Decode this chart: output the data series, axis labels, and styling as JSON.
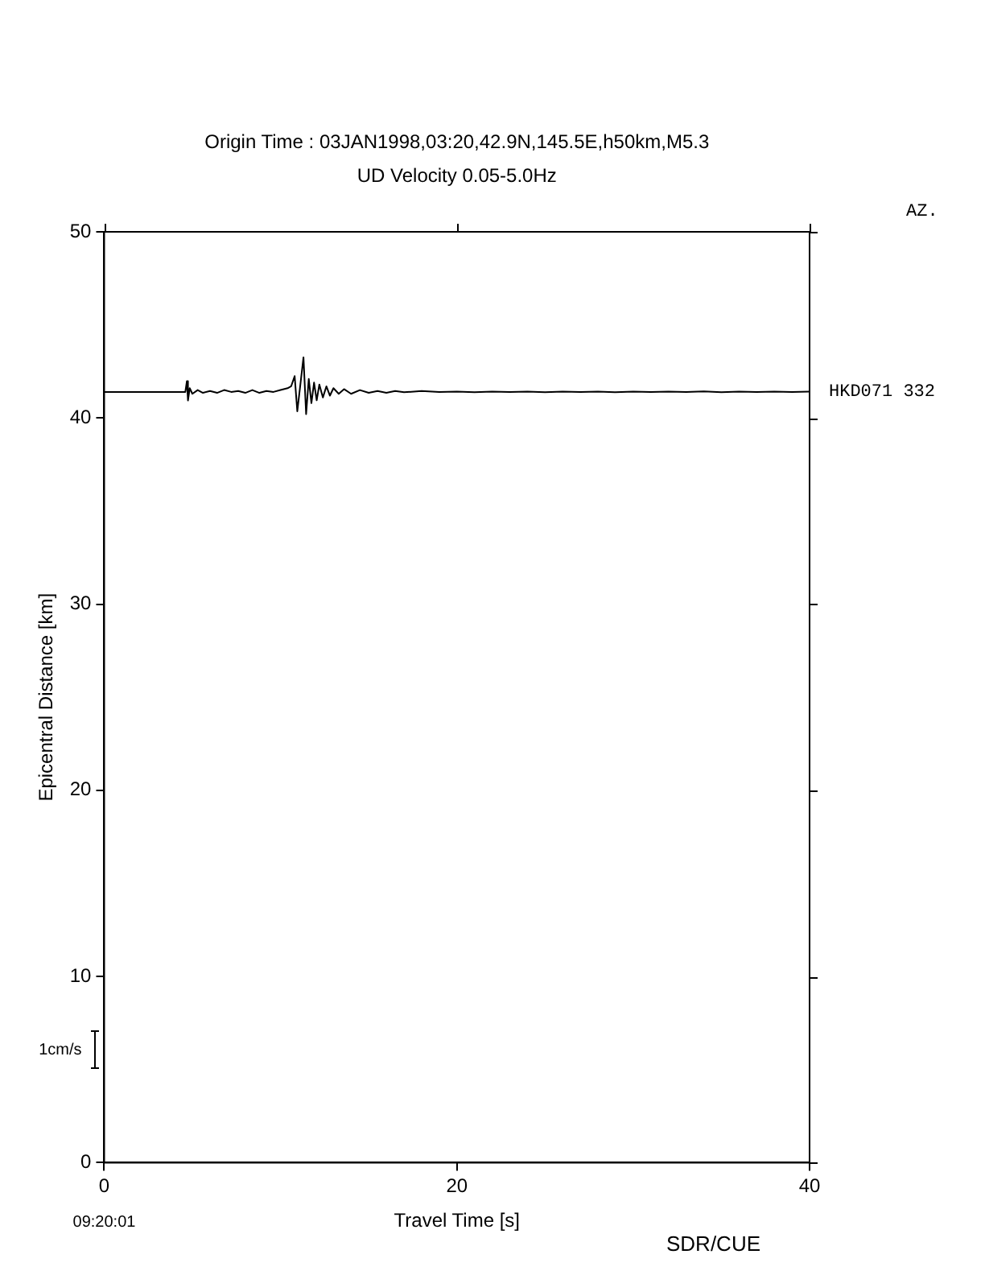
{
  "chart_data": {
    "type": "line",
    "title": "Origin Time : 03JAN1998,03:20,42.9N,145.5E,h50km,M5.3",
    "subtitle": "UD Velocity 0.05-5.0Hz",
    "xlabel": "Travel Time [s]",
    "ylabel": "Epicentral Distance [km]",
    "annotations": [
      "AZ.",
      "1cm/s",
      "09:20:01",
      "SDR/CUE"
    ],
    "xlim": [
      0,
      40
    ],
    "xticks": [
      0,
      20,
      40
    ],
    "ylim": [
      0,
      50
    ],
    "yticks": [
      0,
      10,
      20,
      30,
      40,
      50
    ],
    "grid": false,
    "legend": false,
    "series": [
      {
        "name": "HKD071 332",
        "color": "#000000",
        "x": [
          0,
          4.6,
          4.69,
          4.75,
          4.85,
          5.0,
          5.3,
          5.6,
          6.0,
          6.4,
          6.8,
          7.2,
          7.6,
          8.0,
          8.4,
          8.8,
          9.2,
          9.6,
          10.0,
          10.4,
          10.6,
          10.8,
          10.95,
          11.1,
          11.3,
          11.45,
          11.6,
          11.75,
          11.9,
          12.05,
          12.2,
          12.4,
          12.6,
          12.8,
          13.0,
          13.3,
          13.6,
          14.0,
          14.5,
          15,
          15.5,
          16,
          16.5,
          17,
          18,
          19,
          20,
          21,
          22,
          23,
          24,
          25,
          26,
          27,
          28,
          29,
          30,
          31,
          32,
          33,
          34,
          35,
          36,
          37,
          38,
          39,
          40
        ],
        "values": [
          41.4,
          41.4,
          41.98,
          40.94,
          41.6,
          41.3,
          41.5,
          41.35,
          41.45,
          41.35,
          41.5,
          41.4,
          41.45,
          41.35,
          41.5,
          41.35,
          41.45,
          41.4,
          41.5,
          41.6,
          41.7,
          42.25,
          40.36,
          41.6,
          43.26,
          40.21,
          42.1,
          40.8,
          41.9,
          40.95,
          41.8,
          41.1,
          41.7,
          41.2,
          41.6,
          41.3,
          41.55,
          41.3,
          41.5,
          41.35,
          41.45,
          41.35,
          41.45,
          41.38,
          41.45,
          41.4,
          41.42,
          41.38,
          41.42,
          41.4,
          41.42,
          41.38,
          41.42,
          41.4,
          41.42,
          41.38,
          41.42,
          41.4,
          41.42,
          41.4,
          41.43,
          41.38,
          41.42,
          41.4,
          41.42,
          41.4,
          41.42
        ]
      }
    ]
  }
}
